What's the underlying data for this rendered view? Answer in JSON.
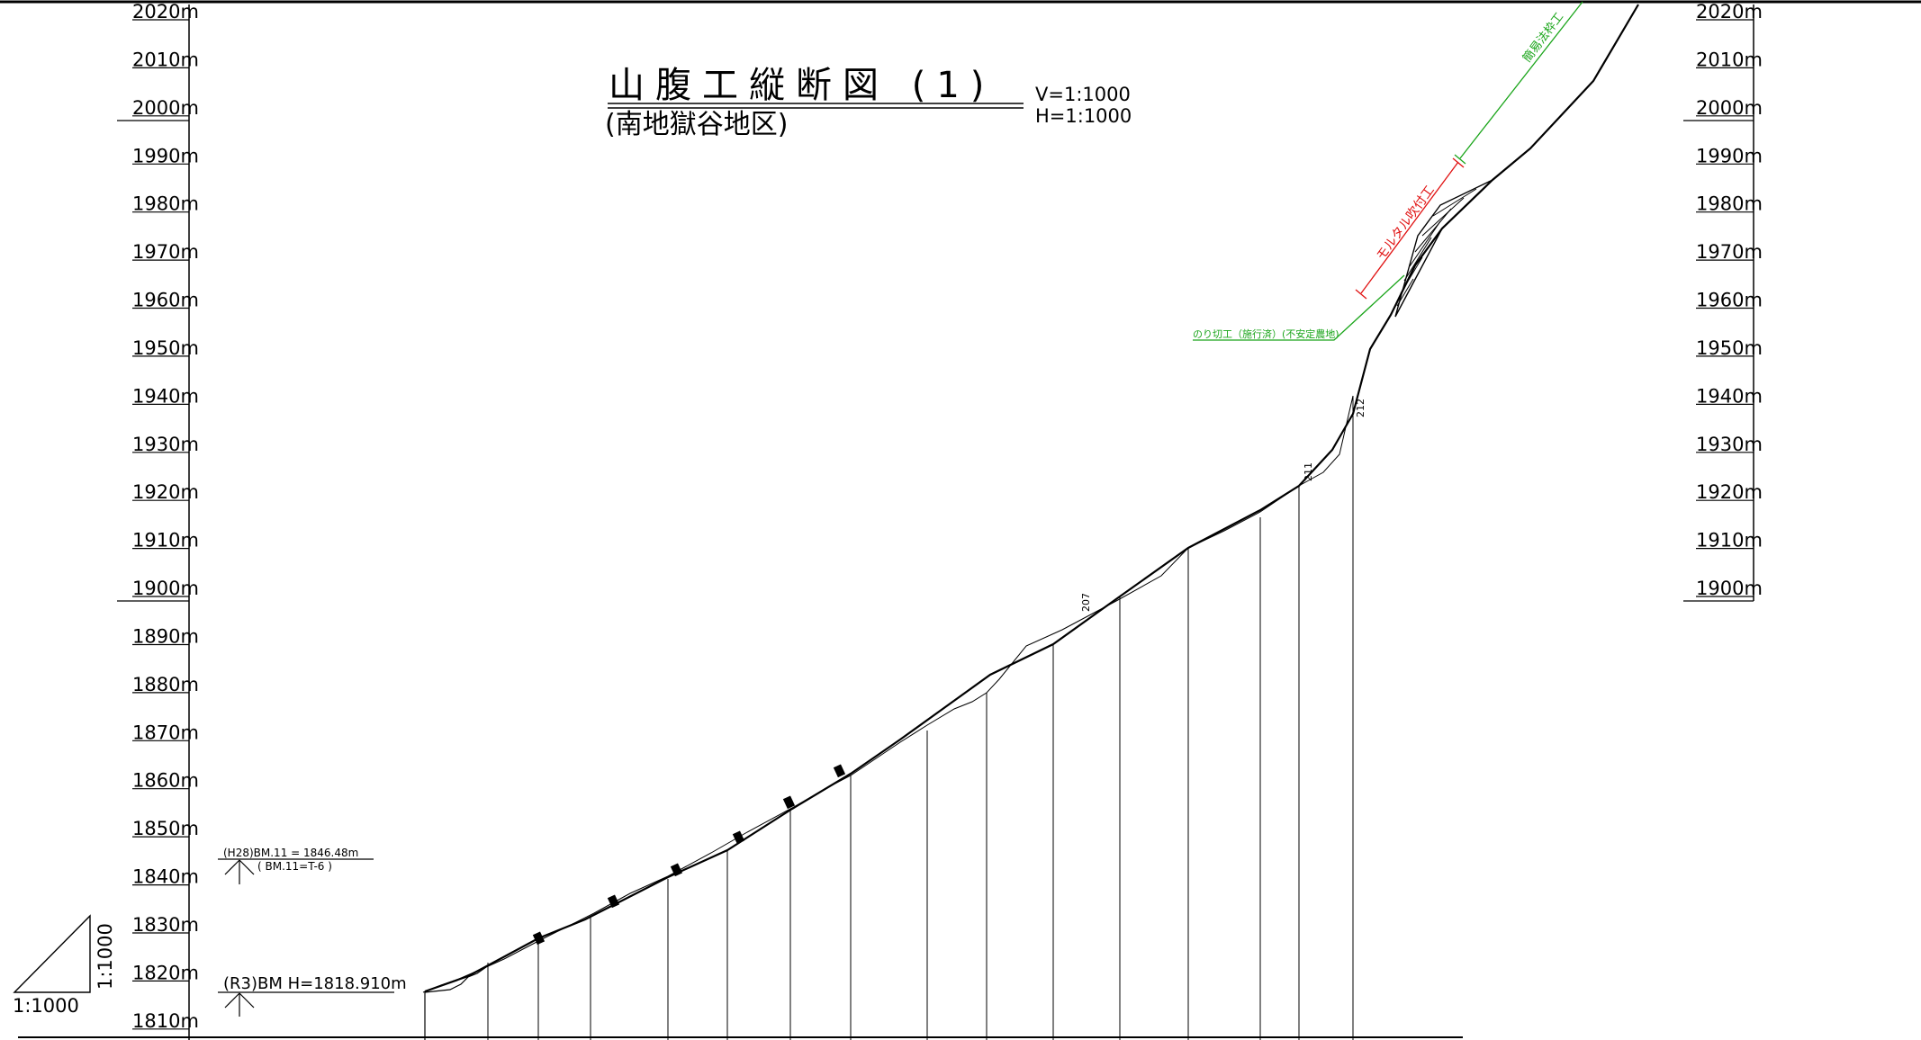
{
  "title": "山腹工縦断図 (1)",
  "subtitle": "(南地獄谷地区)",
  "scale_v": "V=1:1000",
  "scale_h": "H=1:1000",
  "elevation_labels": [
    "2020m",
    "2010m",
    "2000m",
    "1990m",
    "1980m",
    "1970m",
    "1960m",
    "1950m",
    "1940m",
    "1930m",
    "1920m",
    "1910m",
    "1900m",
    "1890m",
    "1880m",
    "1870m",
    "1860m",
    "1850m",
    "1840m",
    "1830m",
    "1820m",
    "1810m"
  ],
  "right_elevation_labels": [
    "2020m",
    "2010m",
    "2000m",
    "1990m",
    "1980m",
    "1970m",
    "1960m",
    "1950m",
    "1940m",
    "1930m",
    "1920m",
    "1910m",
    "1900m"
  ],
  "benchmarks": {
    "bm_h28": "(H28)BM.11 = 1846.48m",
    "bm_h28_sub": "( BM.11=T-6 )",
    "bm_r3": "(R3)BM H=1818.910m"
  },
  "scale_triangle": {
    "horizontal": "1:1000",
    "vertical": "1:1000"
  },
  "stations": {
    "s207": "207",
    "s211": "211",
    "s212": "212"
  },
  "annotations": {
    "slope_cut": "のり切工（施行済）(不安定農地)",
    "mortar": "モルタル吹付工",
    "frame": "簡易法枠工"
  },
  "colors": {
    "line": "#000000",
    "green": "#1aa51a",
    "red": "#e01010"
  }
}
